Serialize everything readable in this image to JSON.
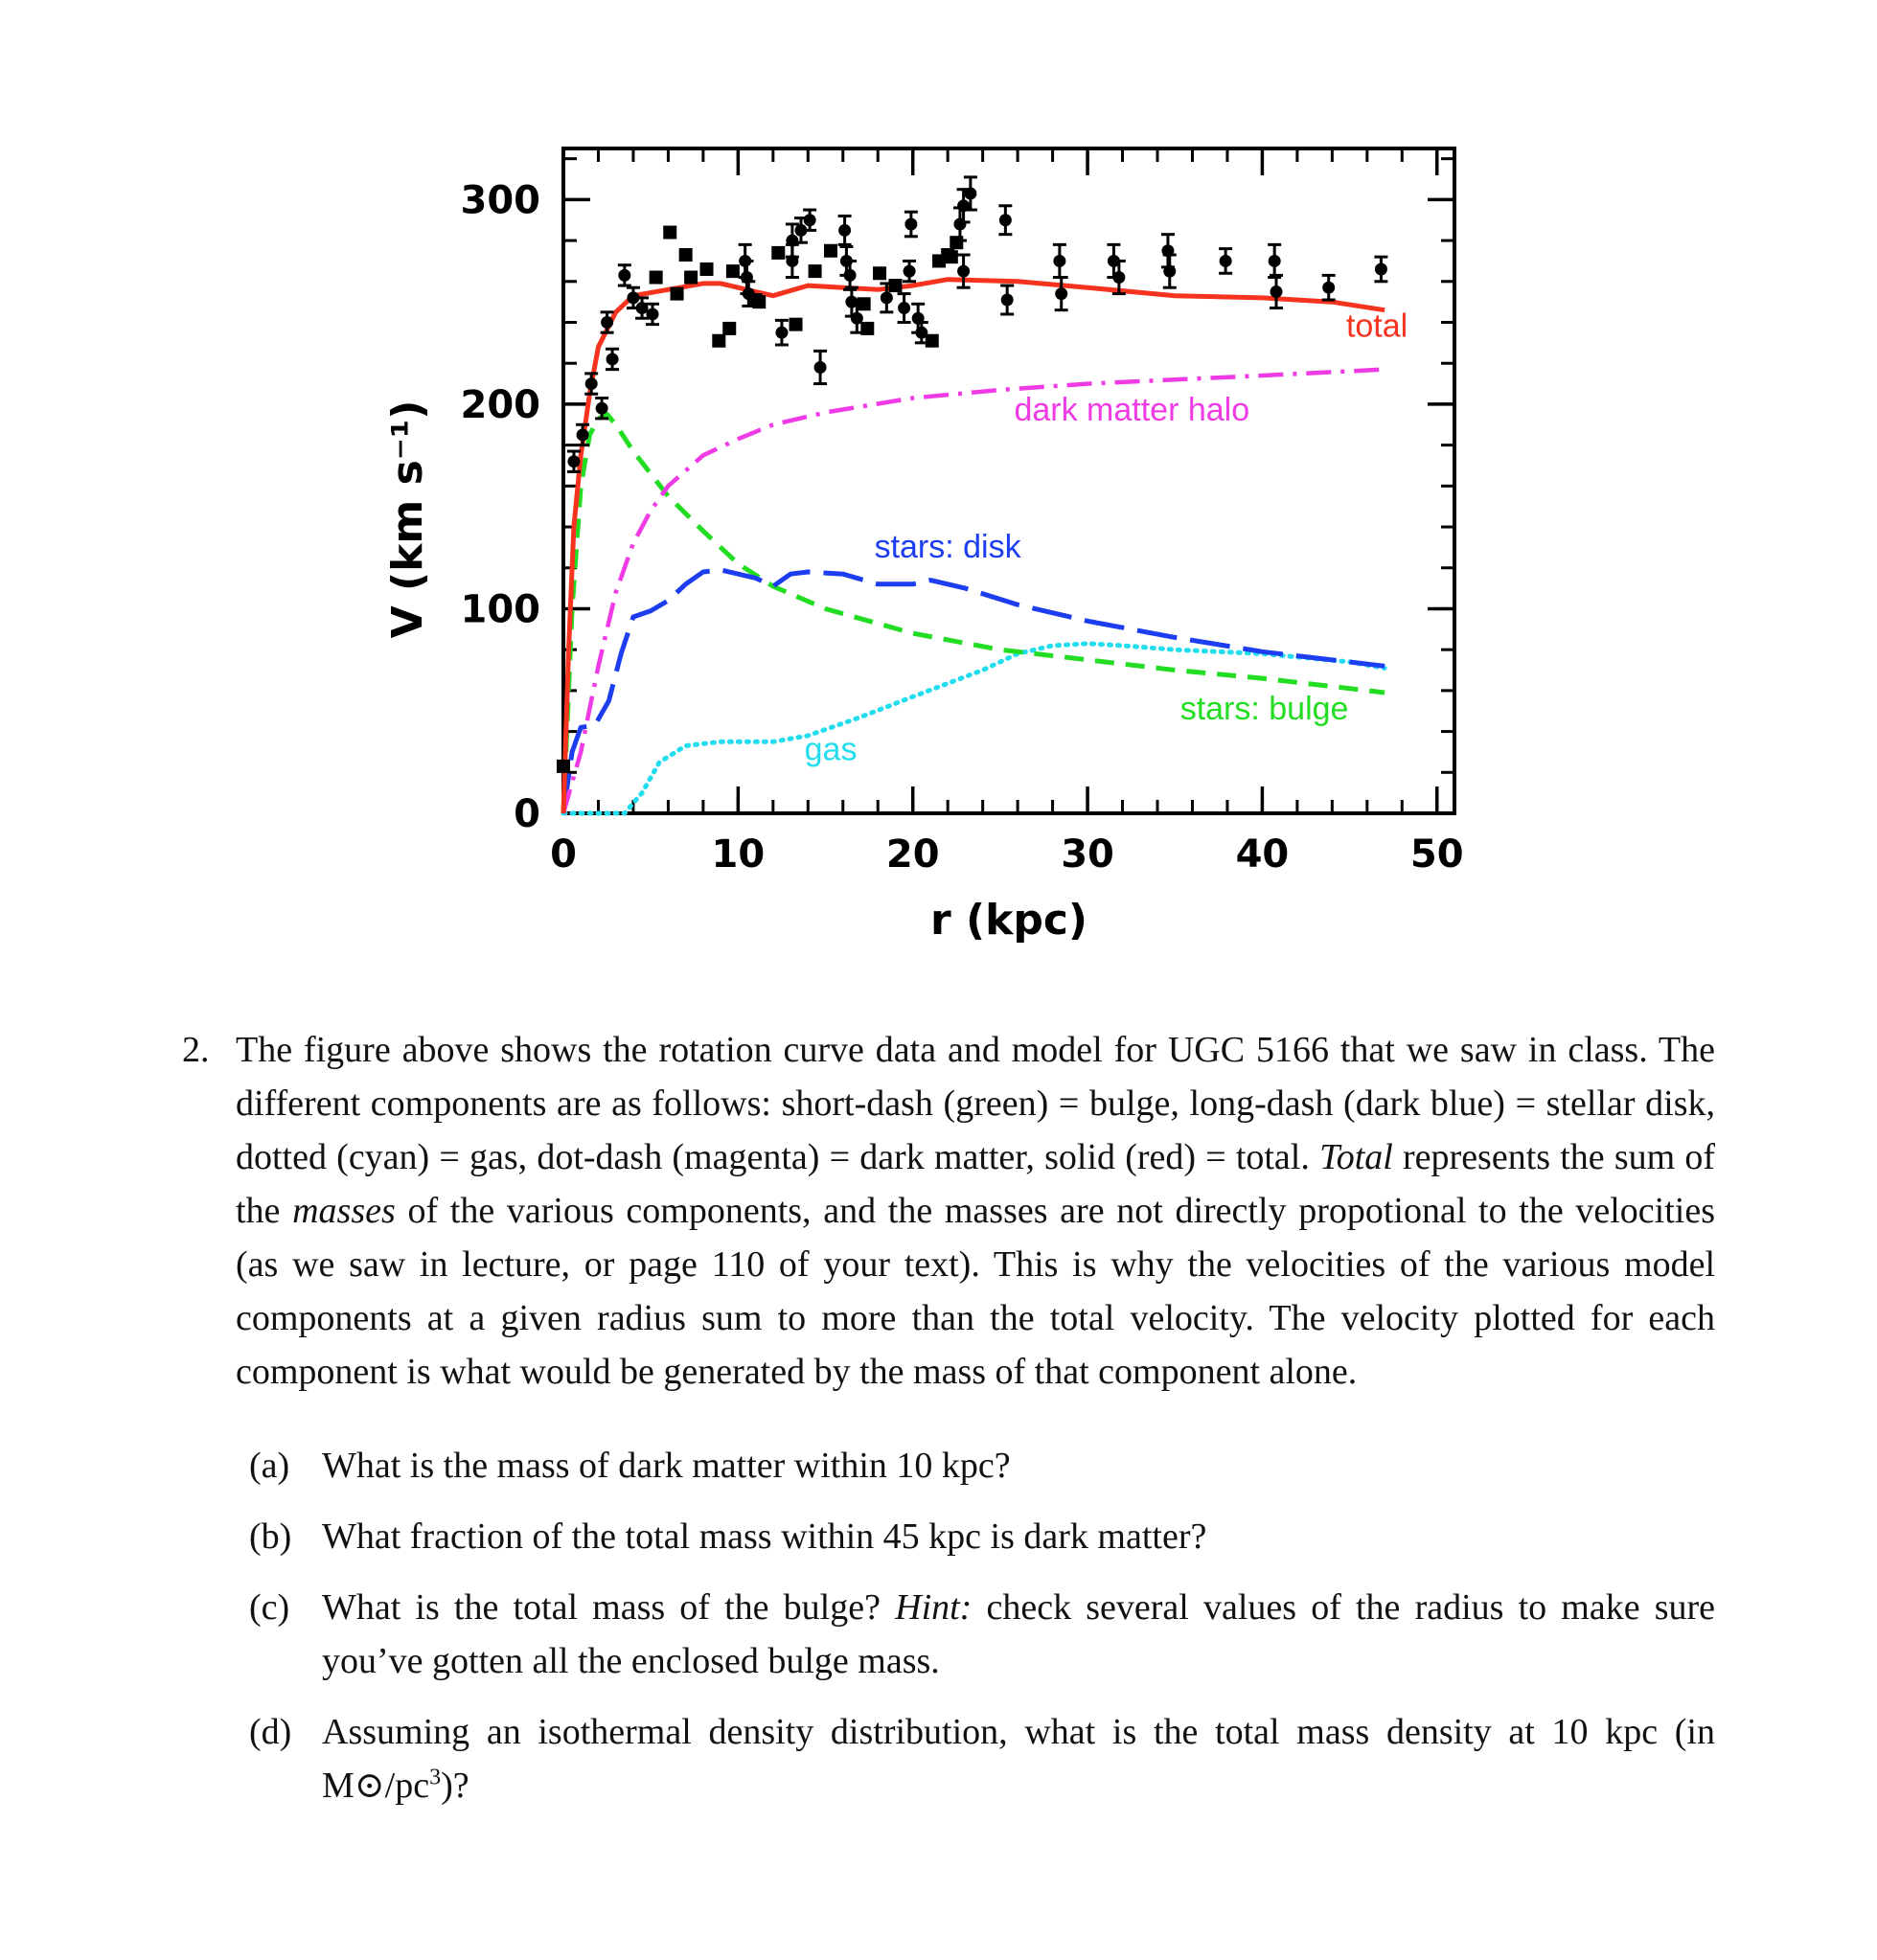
{
  "chart_data": {
    "type": "line",
    "title": "",
    "xlabel": "r (kpc)",
    "ylabel": "V (km s⁻¹)",
    "xlim": [
      0,
      51
    ],
    "ylim": [
      0,
      325
    ],
    "x_ticks": [
      0,
      10,
      20,
      30,
      40,
      50
    ],
    "y_ticks": [
      0,
      100,
      200,
      300
    ],
    "series": [
      {
        "name": "total",
        "style": "solid",
        "color": "#f5331e",
        "points": [
          [
            0,
            0
          ],
          [
            0.3,
            80
          ],
          [
            0.6,
            140
          ],
          [
            1,
            175
          ],
          [
            1.5,
            205
          ],
          [
            2,
            228
          ],
          [
            3,
            245
          ],
          [
            4,
            253
          ],
          [
            6,
            256
          ],
          [
            8,
            259
          ],
          [
            9,
            259
          ],
          [
            10,
            257
          ],
          [
            11,
            255
          ],
          [
            12,
            253
          ],
          [
            14,
            258
          ],
          [
            16,
            257
          ],
          [
            18,
            256
          ],
          [
            20,
            258
          ],
          [
            22,
            261
          ],
          [
            26,
            260
          ],
          [
            30,
            257
          ],
          [
            35,
            253
          ],
          [
            40,
            252
          ],
          [
            44,
            250
          ],
          [
            47,
            246
          ]
        ]
      },
      {
        "name": "dark matter halo",
        "style": "dashdot",
        "color": "#f03ae6",
        "points": [
          [
            0,
            0
          ],
          [
            1,
            30
          ],
          [
            2,
            72
          ],
          [
            3,
            108
          ],
          [
            4,
            132
          ],
          [
            5,
            148
          ],
          [
            6,
            160
          ],
          [
            8,
            175
          ],
          [
            10,
            183
          ],
          [
            12,
            190
          ],
          [
            15,
            196
          ],
          [
            20,
            203
          ],
          [
            25,
            207
          ],
          [
            30,
            210
          ],
          [
            35,
            212
          ],
          [
            40,
            214
          ],
          [
            47,
            217
          ]
        ]
      },
      {
        "name": "stars: disk",
        "style": "longdash",
        "color": "#1d3df0",
        "points": [
          [
            0,
            0
          ],
          [
            0.5,
            30
          ],
          [
            1,
            42
          ],
          [
            1.8,
            43
          ],
          [
            2.6,
            55
          ],
          [
            3.3,
            78
          ],
          [
            4,
            96
          ],
          [
            5,
            99
          ],
          [
            6,
            104
          ],
          [
            7,
            112
          ],
          [
            8,
            118
          ],
          [
            9,
            119
          ],
          [
            10,
            117
          ],
          [
            11,
            115
          ],
          [
            12,
            111
          ],
          [
            13,
            117
          ],
          [
            14,
            118
          ],
          [
            16,
            117
          ],
          [
            18,
            112
          ],
          [
            20,
            112
          ],
          [
            21,
            114
          ],
          [
            23,
            110
          ],
          [
            26,
            102
          ],
          [
            30,
            94
          ],
          [
            35,
            86
          ],
          [
            40,
            79
          ],
          [
            47,
            72
          ]
        ]
      },
      {
        "name": "stars: bulge",
        "style": "shortdash",
        "color": "#22dd22",
        "points": [
          [
            0,
            0
          ],
          [
            0.5,
            100
          ],
          [
            1,
            160
          ],
          [
            1.5,
            185
          ],
          [
            2,
            193
          ],
          [
            2.5,
            195
          ],
          [
            3,
            190
          ],
          [
            4,
            177
          ],
          [
            6,
            155
          ],
          [
            8,
            138
          ],
          [
            10,
            122
          ],
          [
            12,
            111
          ],
          [
            15,
            100
          ],
          [
            20,
            88
          ],
          [
            25,
            80
          ],
          [
            30,
            75
          ],
          [
            35,
            70
          ],
          [
            40,
            66
          ],
          [
            45,
            61
          ],
          [
            47,
            59
          ]
        ]
      },
      {
        "name": "gas",
        "style": "dotted",
        "color": "#22ddee",
        "points": [
          [
            0,
            0
          ],
          [
            2,
            0
          ],
          [
            3.5,
            0
          ],
          [
            4.5,
            10
          ],
          [
            5.5,
            25
          ],
          [
            7,
            33
          ],
          [
            9,
            35
          ],
          [
            12,
            35
          ],
          [
            14,
            38
          ],
          [
            17,
            47
          ],
          [
            20,
            57
          ],
          [
            24,
            70
          ],
          [
            26,
            78
          ],
          [
            28,
            82
          ],
          [
            30,
            83
          ],
          [
            32,
            82
          ],
          [
            35,
            80
          ],
          [
            40,
            78
          ],
          [
            45,
            74
          ],
          [
            47,
            71
          ]
        ]
      }
    ],
    "data_points": {
      "name": "observed",
      "color": "#000000",
      "points": [
        [
          0,
          23,
          4
        ],
        [
          0.6,
          172,
          5
        ],
        [
          1.1,
          185,
          5
        ],
        [
          1.6,
          210,
          5
        ],
        [
          2.2,
          198,
          5
        ],
        [
          2.5,
          240,
          5
        ],
        [
          2.8,
          222,
          5
        ],
        [
          3.5,
          263,
          5
        ],
        [
          4,
          252,
          5
        ],
        [
          4.5,
          247,
          5
        ],
        [
          5.1,
          244,
          5
        ],
        [
          5.3,
          262,
          4
        ],
        [
          6.1,
          284,
          4
        ],
        [
          6.5,
          254,
          4
        ],
        [
          7,
          273,
          4
        ],
        [
          7.3,
          262,
          4
        ],
        [
          8.2,
          266,
          4
        ],
        [
          8.9,
          231,
          4
        ],
        [
          9.5,
          237,
          4
        ],
        [
          9.7,
          265,
          4
        ],
        [
          10.4,
          270,
          8
        ],
        [
          10.5,
          262,
          8
        ],
        [
          10.6,
          254,
          6
        ],
        [
          11,
          251,
          4
        ],
        [
          11.2,
          250,
          4
        ],
        [
          12.3,
          274,
          4
        ],
        [
          12.5,
          235,
          6
        ],
        [
          13.1,
          280,
          8
        ],
        [
          13.1,
          270,
          8
        ],
        [
          13.3,
          239,
          4
        ],
        [
          13.6,
          285,
          6
        ],
        [
          14.1,
          290,
          5
        ],
        [
          14.4,
          265,
          4
        ],
        [
          14.7,
          218,
          8
        ],
        [
          15.3,
          275,
          4
        ],
        [
          16.1,
          285,
          7
        ],
        [
          16.2,
          270,
          7
        ],
        [
          16.4,
          263,
          7
        ],
        [
          16.5,
          250,
          7
        ],
        [
          16.8,
          242,
          7
        ],
        [
          17.2,
          249,
          4
        ],
        [
          17.4,
          237,
          4
        ],
        [
          18.1,
          264,
          4
        ],
        [
          18.5,
          252,
          7
        ],
        [
          19,
          258,
          4
        ],
        [
          19.5,
          247,
          7
        ],
        [
          19.8,
          265,
          5
        ],
        [
          19.9,
          288,
          6
        ],
        [
          20.3,
          242,
          7
        ],
        [
          20.5,
          235,
          5
        ],
        [
          21.1,
          231,
          4
        ],
        [
          21.5,
          270,
          4
        ],
        [
          22,
          273,
          4
        ],
        [
          22.2,
          272,
          4
        ],
        [
          22.5,
          279,
          4
        ],
        [
          22.7,
          288,
          8
        ],
        [
          22.9,
          297,
          8
        ],
        [
          22.9,
          265,
          8
        ],
        [
          23.3,
          303,
          8
        ],
        [
          25.3,
          290,
          7
        ],
        [
          25.4,
          251,
          7
        ],
        [
          28.4,
          270,
          8
        ],
        [
          28.5,
          254,
          8
        ],
        [
          31.5,
          270,
          8
        ],
        [
          31.8,
          262,
          8
        ],
        [
          34.6,
          275,
          8
        ],
        [
          34.7,
          265,
          8
        ],
        [
          37.9,
          270,
          6
        ],
        [
          40.7,
          270,
          8
        ],
        [
          40.8,
          255,
          8
        ],
        [
          43.8,
          257,
          6
        ],
        [
          46.8,
          266,
          6
        ]
      ]
    }
  },
  "problem": {
    "number": "2.",
    "intro_1": "The figure above shows the rotation curve data and model for UGC 5166 that we saw in class. The different components are as follows: short-dash (green) = bulge, long-dash (dark blue) = stellar disk, dotted (cyan) = gas, dot-dash (magenta) = dark matter, solid (red) = total.",
    "intro_em_1": "Total",
    "intro_2": "represents the sum of the",
    "intro_em_2": "masses",
    "intro_3": "of the various components, and the masses are not directly propotional to the velocities (as we saw in lecture, or page 110 of your text). This is why the velocities of the various model components at a given radius sum to more than the total velocity. The velocity plotted for each component is what would be generated by the mass of that component alone.",
    "questions": {
      "a": {
        "label": "(a)",
        "text": "What is the mass of dark matter within 10 kpc?"
      },
      "b": {
        "label": "(b)",
        "text": "What fraction of the total mass within 45 kpc is dark matter?"
      },
      "c": {
        "label": "(c)",
        "text_1": "What is the total mass of the bulge?",
        "hint": "Hint:",
        "text_2": "check several values of the radius to make sure you’ve gotten all the enclosed bulge mass."
      },
      "d": {
        "label": "(d)",
        "text_1": "Assuming an isothermal density distribution, what is the total mass density at 10 kpc (in M",
        "sun_symbol": "⊙",
        "text_2": "/pc",
        "exponent": "3",
        "text_3": ")?"
      }
    }
  }
}
